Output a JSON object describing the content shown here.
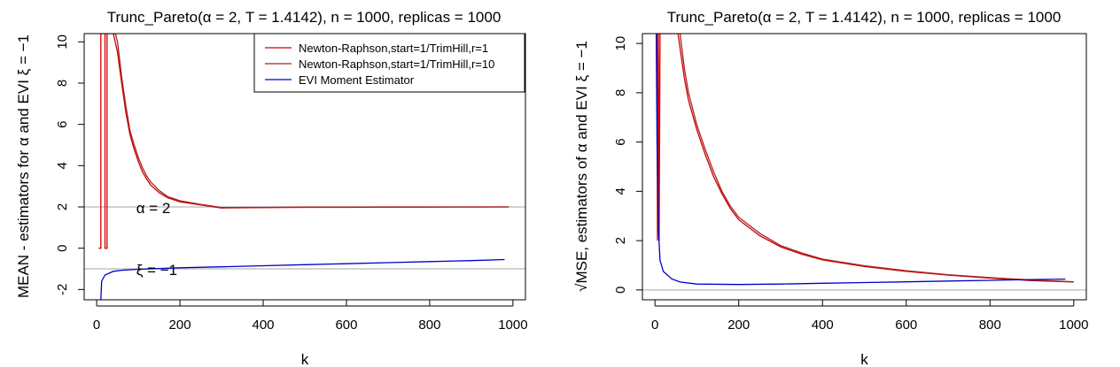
{
  "chart_data": [
    {
      "type": "line",
      "title": "Trunc_Pareto(α = 2, T = 1.4142), n = 1000, replicas = 1000",
      "xlabel": "k",
      "ylabel": "MEAN - estimators for α and EVI ξ = −1",
      "xlim": [
        -30,
        1030
      ],
      "ylim": [
        -2.5,
        10.4
      ],
      "xticks": [
        "0",
        "200",
        "400",
        "600",
        "800",
        "1000"
      ],
      "yticks": [
        "-2",
        "0",
        "2",
        "4",
        "6",
        "8",
        "10"
      ],
      "ref_lines": [
        2,
        -1
      ],
      "annotations": [
        {
          "text": "α = 2",
          "x": 95,
          "y": 2
        },
        {
          "text": "ξ = −1",
          "x": 95,
          "y": -1
        }
      ],
      "legend": {
        "position": "top-right",
        "entries": [
          {
            "label": "Newton-Raphson,start=1/TrimHill,r=1",
            "color": "#cc0000"
          },
          {
            "label": "Newton-Raphson,start=1/TrimHill,r=10",
            "color": "#aa2222"
          },
          {
            "label": "EVI Moment Estimator",
            "color": "#0000cc"
          }
        ]
      },
      "series": [
        {
          "color": "#cc0000",
          "points": [
            [
              5,
              0
            ],
            [
              10,
              0
            ],
            [
              10,
              10.4
            ],
            [
              20,
              10.4
            ],
            [
              20,
              0
            ],
            [
              25,
              0
            ],
            [
              25,
              10.4
            ],
            [
              40,
              10.4
            ],
            [
              50,
              9.5
            ],
            [
              60,
              8
            ],
            [
              70,
              6.6
            ],
            [
              80,
              5.5
            ],
            [
              90,
              4.8
            ],
            [
              100,
              4.2
            ],
            [
              110,
              3.7
            ],
            [
              120,
              3.35
            ],
            [
              130,
              3.05
            ],
            [
              150,
              2.7
            ],
            [
              170,
              2.45
            ],
            [
              200,
              2.25
            ],
            [
              250,
              2.1
            ],
            [
              300,
              1.95
            ],
            [
              400,
              1.97
            ],
            [
              500,
              1.98
            ],
            [
              600,
              1.98
            ],
            [
              700,
              1.99
            ],
            [
              800,
              1.99
            ],
            [
              990,
              2
            ]
          ]
        },
        {
          "color": "#aa2222",
          "points": [
            [
              45,
              10.4
            ],
            [
              50,
              10
            ],
            [
              60,
              8.3
            ],
            [
              70,
              6.9
            ],
            [
              80,
              5.7
            ],
            [
              90,
              5
            ],
            [
              100,
              4.4
            ],
            [
              110,
              3.9
            ],
            [
              120,
              3.5
            ],
            [
              130,
              3.2
            ],
            [
              150,
              2.8
            ],
            [
              170,
              2.5
            ],
            [
              200,
              2.3
            ],
            [
              250,
              2.12
            ],
            [
              300,
              1.97
            ],
            [
              400,
              1.98
            ],
            [
              500,
              1.99
            ],
            [
              600,
              1.99
            ],
            [
              700,
              2
            ],
            [
              990,
              2
            ]
          ]
        },
        {
          "color": "#0000cc",
          "points": [
            [
              10,
              -2.5
            ],
            [
              12,
              -1.6
            ],
            [
              20,
              -1.3
            ],
            [
              40,
              -1.12
            ],
            [
              60,
              -1.07
            ],
            [
              100,
              -1.02
            ],
            [
              200,
              -0.95
            ],
            [
              300,
              -0.9
            ],
            [
              400,
              -0.85
            ],
            [
              500,
              -0.8
            ],
            [
              600,
              -0.75
            ],
            [
              700,
              -0.7
            ],
            [
              800,
              -0.65
            ],
            [
              900,
              -0.6
            ],
            [
              980,
              -0.55
            ]
          ]
        }
      ]
    },
    {
      "type": "line",
      "title": "Trunc_Pareto(α = 2, T = 1.4142), n = 1000, replicas = 1000",
      "xlabel": "k",
      "ylabel": "√MSE, estimators of α and EVI ξ = −1",
      "xlim": [
        -30,
        1030
      ],
      "ylim": [
        -0.4,
        10.4
      ],
      "xticks": [
        "0",
        "200",
        "400",
        "600",
        "800",
        "1000"
      ],
      "yticks": [
        "0",
        "2",
        "4",
        "6",
        "8",
        "10"
      ],
      "ref_lines": [
        0
      ],
      "series": [
        {
          "color": "#cc0000",
          "points": [
            [
              5,
              10.4
            ],
            [
              6,
              2
            ],
            [
              8,
              10.4
            ],
            [
              10,
              2
            ],
            [
              12,
              10.4
            ],
            [
              55,
              10.4
            ],
            [
              60,
              9.8
            ],
            [
              70,
              8.6
            ],
            [
              80,
              7.7
            ],
            [
              100,
              6.5
            ],
            [
              120,
              5.5
            ],
            [
              140,
              4.6
            ],
            [
              160,
              3.9
            ],
            [
              180,
              3.3
            ],
            [
              200,
              2.85
            ],
            [
              250,
              2.2
            ],
            [
              300,
              1.75
            ],
            [
              350,
              1.45
            ],
            [
              400,
              1.22
            ],
            [
              500,
              0.95
            ],
            [
              600,
              0.75
            ],
            [
              700,
              0.6
            ],
            [
              800,
              0.48
            ],
            [
              900,
              0.38
            ],
            [
              1000,
              0.32
            ]
          ]
        },
        {
          "color": "#aa2222",
          "points": [
            [
              60,
              10.4
            ],
            [
              70,
              9
            ],
            [
              80,
              8
            ],
            [
              100,
              6.7
            ],
            [
              120,
              5.7
            ],
            [
              140,
              4.8
            ],
            [
              160,
              4
            ],
            [
              180,
              3.4
            ],
            [
              200,
              2.95
            ],
            [
              250,
              2.3
            ],
            [
              300,
              1.8
            ],
            [
              350,
              1.5
            ],
            [
              400,
              1.25
            ],
            [
              500,
              0.98
            ],
            [
              600,
              0.78
            ],
            [
              700,
              0.62
            ],
            [
              800,
              0.5
            ],
            [
              900,
              0.4
            ],
            [
              1000,
              0.33
            ]
          ]
        },
        {
          "color": "#0000cc",
          "points": [
            [
              3,
              10.4
            ],
            [
              5,
              6
            ],
            [
              8,
              2.5
            ],
            [
              12,
              1.2
            ],
            [
              20,
              0.75
            ],
            [
              40,
              0.45
            ],
            [
              60,
              0.32
            ],
            [
              100,
              0.24
            ],
            [
              200,
              0.22
            ],
            [
              300,
              0.24
            ],
            [
              400,
              0.27
            ],
            [
              500,
              0.3
            ],
            [
              600,
              0.33
            ],
            [
              700,
              0.36
            ],
            [
              800,
              0.39
            ],
            [
              900,
              0.42
            ],
            [
              980,
              0.44
            ]
          ]
        }
      ]
    }
  ]
}
